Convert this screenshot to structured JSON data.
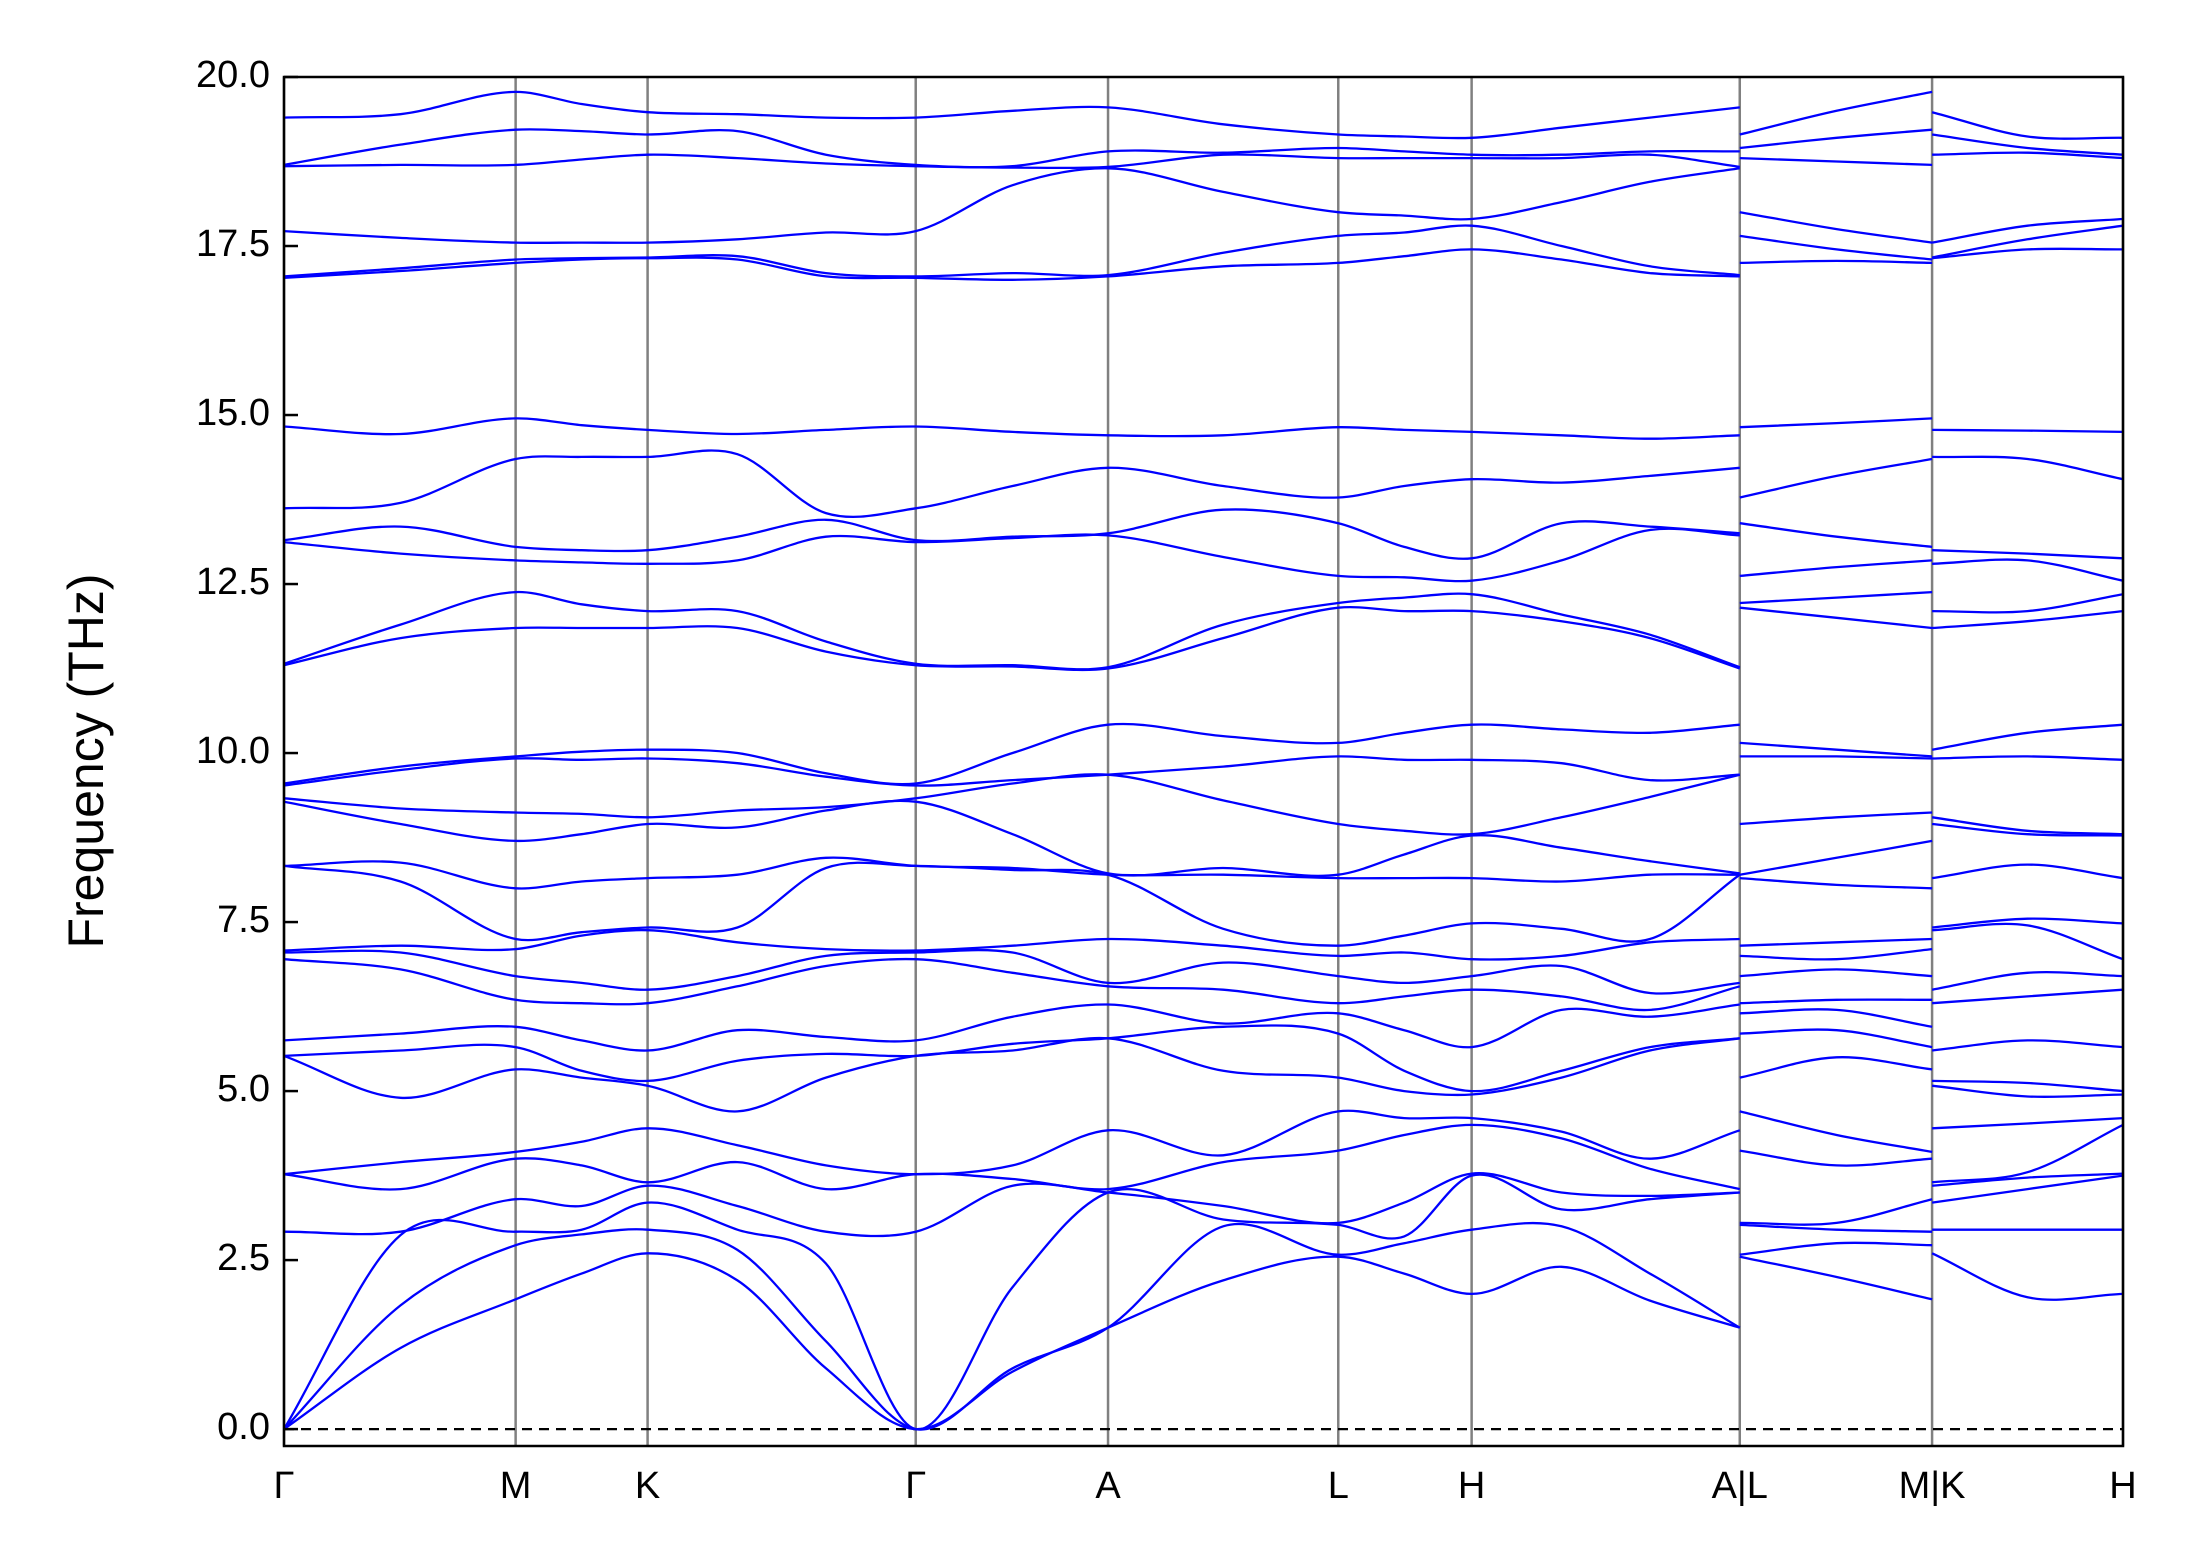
{
  "chart_data": {
    "type": "line",
    "y_label": "Frequency (THz)",
    "color": "#0000ff",
    "grid_color": "#808080",
    "xgrid": true,
    "hline": 0,
    "xlim": [
      0,
      1.31
    ],
    "ylim": [
      -0.25,
      20
    ],
    "xticks": [
      {
        "value": 0,
        "label": "Γ"
      },
      {
        "value": 0.165,
        "label": "M"
      },
      {
        "value": 0.259,
        "label": "K"
      },
      {
        "value": 0.45,
        "label": "Γ"
      },
      {
        "value": 0.587,
        "label": "A"
      },
      {
        "value": 0.751,
        "label": "L"
      },
      {
        "value": 0.846,
        "label": "H"
      },
      {
        "value": 1.037,
        "label": "A|L"
      },
      {
        "value": 1.174,
        "label": "M|K"
      },
      {
        "value": 1.31,
        "label": "H"
      }
    ],
    "yticks": [
      {
        "value": 0,
        "label": "0.0"
      },
      2.5,
      {
        "value": 5,
        "label": "5.0"
      },
      7.5,
      {
        "value": 10,
        "label": "10.0"
      },
      12.5,
      {
        "value": 15,
        "label": "15.0"
      },
      17.5,
      {
        "value": 20,
        "label": "20.0"
      }
    ],
    "x": [
      0,
      0.083,
      0.165,
      0.212,
      0.259,
      0.323,
      0.386,
      0.45,
      0.519,
      0.587,
      0.669,
      0.751,
      0.798,
      0.846,
      0.91,
      0.973,
      1.037,
      1.037,
      1.037,
      1.106,
      1.174,
      1.174,
      1.174,
      1.242,
      1.31
    ],
    "series": [
      {
        "values": [
          0,
          1.2,
          1.92,
          2.3,
          2.6,
          2.2,
          0.9,
          0,
          0.85,
          1.5,
          2.2,
          2.55,
          2.3,
          2.0,
          2.4,
          1.9,
          1.5,
          null,
          2.55,
          2.25,
          1.92,
          null,
          2.6,
          1.95,
          2.0
        ]
      },
      {
        "values": [
          0,
          1.83,
          2.72,
          2.88,
          2.95,
          2.65,
          1.3,
          0,
          0.9,
          1.5,
          3.0,
          2.58,
          2.75,
          2.95,
          3.0,
          2.3,
          1.5,
          null,
          2.58,
          2.75,
          2.72,
          null,
          2.95,
          2.95,
          2.95
        ]
      },
      {
        "values": [
          0,
          2.87,
          2.92,
          2.95,
          3.35,
          2.95,
          2.45,
          0,
          2.1,
          3.5,
          3.1,
          3.02,
          2.85,
          3.75,
          3.25,
          3.4,
          3.5,
          null,
          3.02,
          2.95,
          2.92,
          null,
          3.35,
          3.55,
          3.75
        ]
      },
      {
        "values": [
          2.92,
          2.92,
          3.4,
          3.3,
          3.6,
          3.3,
          2.92,
          2.92,
          3.6,
          3.5,
          3.3,
          3.05,
          3.35,
          3.78,
          3.5,
          3.45,
          3.5,
          null,
          3.05,
          3.05,
          3.4,
          null,
          3.6,
          3.72,
          3.78
        ]
      },
      {
        "values": [
          3.77,
          3.55,
          4.0,
          3.9,
          3.65,
          3.95,
          3.55,
          3.77,
          3.7,
          3.55,
          3.95,
          4.12,
          4.35,
          4.5,
          4.3,
          3.85,
          3.55,
          null,
          4.12,
          3.9,
          4.0,
          null,
          3.65,
          3.8,
          4.5
        ]
      },
      {
        "values": [
          3.77,
          3.95,
          4.1,
          4.25,
          4.45,
          4.2,
          3.9,
          3.77,
          3.9,
          4.42,
          4.05,
          4.7,
          4.6,
          4.6,
          4.4,
          4.0,
          4.42,
          null,
          4.7,
          4.35,
          4.1,
          null,
          4.45,
          4.52,
          4.6
        ]
      },
      {
        "values": [
          5.52,
          4.9,
          5.32,
          5.2,
          5.08,
          4.7,
          5.2,
          5.52,
          5.6,
          5.78,
          5.3,
          5.2,
          5.0,
          4.95,
          5.2,
          5.6,
          5.78,
          null,
          5.2,
          5.5,
          5.32,
          null,
          5.08,
          4.92,
          4.95
        ]
      },
      {
        "values": [
          5.52,
          5.6,
          5.65,
          5.3,
          5.15,
          5.45,
          5.55,
          5.52,
          5.7,
          5.78,
          5.95,
          5.85,
          5.3,
          5.0,
          5.3,
          5.65,
          5.78,
          null,
          5.85,
          5.9,
          5.65,
          null,
          5.15,
          5.12,
          5.0
        ]
      },
      {
        "values": [
          5.75,
          5.85,
          5.95,
          5.75,
          5.6,
          5.9,
          5.8,
          5.75,
          6.1,
          6.28,
          6.0,
          6.15,
          5.9,
          5.65,
          6.2,
          6.1,
          6.28,
          null,
          6.15,
          6.2,
          5.95,
          null,
          5.6,
          5.75,
          5.65
        ]
      },
      {
        "values": [
          6.95,
          6.8,
          6.35,
          6.3,
          6.3,
          6.55,
          6.85,
          6.95,
          6.75,
          6.55,
          6.5,
          6.3,
          6.4,
          6.5,
          6.4,
          6.2,
          6.55,
          null,
          6.3,
          6.35,
          6.35,
          null,
          6.3,
          6.4,
          6.5
        ]
      },
      {
        "values": [
          7.05,
          7.05,
          6.7,
          6.6,
          6.5,
          6.7,
          7.0,
          7.05,
          7.05,
          6.6,
          6.9,
          6.7,
          6.6,
          6.7,
          6.85,
          6.45,
          6.6,
          null,
          6.7,
          6.8,
          6.7,
          null,
          6.5,
          6.75,
          6.7
        ]
      },
      {
        "values": [
          7.08,
          7.15,
          7.1,
          7.3,
          7.38,
          7.2,
          7.1,
          7.08,
          7.15,
          7.25,
          7.15,
          7.0,
          7.05,
          6.95,
          7.0,
          7.2,
          7.25,
          null,
          7.0,
          6.95,
          7.1,
          null,
          7.38,
          7.45,
          6.95
        ]
      },
      {
        "values": [
          8.33,
          8.1,
          7.25,
          7.35,
          7.42,
          7.42,
          8.3,
          8.33,
          8.27,
          8.2,
          7.4,
          7.15,
          7.3,
          7.48,
          7.4,
          7.25,
          8.2,
          null,
          7.15,
          7.2,
          7.25,
          null,
          7.42,
          7.55,
          7.48
        ]
      },
      {
        "values": [
          8.33,
          8.38,
          8.0,
          8.1,
          8.15,
          8.2,
          8.45,
          8.33,
          8.3,
          8.2,
          8.2,
          8.15,
          8.15,
          8.15,
          8.1,
          8.2,
          8.2,
          null,
          8.15,
          8.05,
          8.0,
          null,
          8.15,
          8.35,
          8.15
        ]
      },
      {
        "values": [
          9.28,
          8.95,
          8.7,
          8.8,
          8.95,
          8.9,
          9.15,
          9.28,
          8.8,
          8.22,
          8.3,
          8.2,
          8.5,
          8.78,
          8.6,
          8.4,
          8.22,
          null,
          8.2,
          8.45,
          8.7,
          null,
          8.95,
          8.8,
          8.78
        ]
      },
      {
        "values": [
          9.33,
          9.18,
          9.12,
          9.1,
          9.05,
          9.15,
          9.2,
          9.33,
          9.55,
          9.68,
          9.3,
          8.95,
          8.85,
          8.8,
          9.05,
          9.35,
          9.68,
          null,
          8.95,
          9.05,
          9.12,
          null,
          9.05,
          8.85,
          8.8
        ]
      },
      {
        "values": [
          9.52,
          9.75,
          9.92,
          9.9,
          9.92,
          9.85,
          9.65,
          9.52,
          9.6,
          9.68,
          9.8,
          9.95,
          9.9,
          9.9,
          9.85,
          9.6,
          9.68,
          null,
          9.95,
          9.95,
          9.92,
          null,
          9.92,
          9.95,
          9.9
        ]
      },
      {
        "values": [
          9.55,
          9.8,
          9.95,
          10.02,
          10.05,
          10.0,
          9.7,
          9.55,
          10.0,
          10.42,
          10.25,
          10.15,
          10.3,
          10.42,
          10.35,
          10.3,
          10.42,
          null,
          10.15,
          10.05,
          9.95,
          null,
          10.05,
          10.3,
          10.42
        ]
      },
      {
        "values": [
          11.3,
          11.7,
          11.85,
          11.85,
          11.85,
          11.85,
          11.5,
          11.3,
          11.28,
          11.25,
          11.7,
          12.15,
          12.1,
          12.1,
          11.95,
          11.7,
          11.25,
          null,
          12.15,
          12.0,
          11.85,
          null,
          11.85,
          11.95,
          12.1
        ]
      },
      {
        "values": [
          11.32,
          11.9,
          12.38,
          12.2,
          12.1,
          12.1,
          11.65,
          11.32,
          11.3,
          11.27,
          11.9,
          12.22,
          12.3,
          12.35,
          12.05,
          11.75,
          11.27,
          null,
          12.22,
          12.3,
          12.38,
          null,
          12.1,
          12.1,
          12.35
        ]
      },
      {
        "values": [
          13.12,
          12.95,
          12.85,
          12.82,
          12.8,
          12.85,
          13.2,
          13.12,
          13.18,
          13.22,
          12.9,
          12.62,
          12.6,
          12.55,
          12.85,
          13.3,
          13.22,
          null,
          12.62,
          12.75,
          12.85,
          null,
          12.8,
          12.85,
          12.55
        ]
      },
      {
        "values": [
          13.15,
          13.35,
          13.05,
          13.0,
          13.0,
          13.2,
          13.45,
          13.15,
          13.2,
          13.25,
          13.6,
          13.4,
          13.05,
          12.88,
          13.4,
          13.35,
          13.25,
          null,
          13.4,
          13.2,
          13.05,
          null,
          13.0,
          12.95,
          12.88
        ]
      },
      {
        "values": [
          13.62,
          13.7,
          14.35,
          14.38,
          14.38,
          14.42,
          13.55,
          13.62,
          13.95,
          14.22,
          13.95,
          13.78,
          13.95,
          14.05,
          14.0,
          14.1,
          14.22,
          null,
          13.78,
          14.1,
          14.35,
          null,
          14.38,
          14.35,
          14.05
        ]
      },
      {
        "values": [
          14.83,
          14.72,
          14.95,
          14.85,
          14.78,
          14.72,
          14.78,
          14.83,
          14.75,
          14.7,
          14.7,
          14.82,
          14.78,
          14.75,
          14.7,
          14.65,
          14.7,
          null,
          14.82,
          14.88,
          14.95,
          null,
          14.78,
          14.77,
          14.75
        ]
      },
      {
        "values": [
          17.03,
          17.13,
          17.25,
          17.3,
          17.32,
          17.3,
          17.05,
          17.03,
          17.0,
          17.05,
          17.2,
          17.25,
          17.35,
          17.45,
          17.3,
          17.1,
          17.05,
          null,
          17.25,
          17.28,
          17.25,
          null,
          17.32,
          17.45,
          17.45
        ]
      },
      {
        "values": [
          17.05,
          17.17,
          17.3,
          17.32,
          17.33,
          17.35,
          17.1,
          17.05,
          17.1,
          17.07,
          17.4,
          17.65,
          17.7,
          17.8,
          17.5,
          17.2,
          17.07,
          null,
          17.65,
          17.45,
          17.3,
          null,
          17.33,
          17.6,
          17.8
        ]
      },
      {
        "values": [
          17.72,
          17.62,
          17.55,
          17.55,
          17.55,
          17.6,
          17.7,
          17.72,
          18.4,
          18.65,
          18.3,
          18.0,
          17.95,
          17.9,
          18.15,
          18.45,
          18.65,
          null,
          18.0,
          17.75,
          17.55,
          null,
          17.55,
          17.8,
          17.9
        ]
      },
      {
        "values": [
          18.68,
          18.7,
          18.7,
          18.78,
          18.85,
          18.8,
          18.72,
          18.68,
          18.66,
          18.67,
          18.85,
          18.8,
          18.8,
          18.8,
          18.8,
          18.85,
          18.67,
          null,
          18.8,
          18.75,
          18.7,
          null,
          18.85,
          18.88,
          18.8
        ]
      },
      {
        "values": [
          18.7,
          19.0,
          19.22,
          19.2,
          19.15,
          19.2,
          18.85,
          18.7,
          18.68,
          18.9,
          18.88,
          18.95,
          18.9,
          18.85,
          18.85,
          18.9,
          18.9,
          null,
          18.95,
          19.1,
          19.22,
          null,
          19.15,
          18.95,
          18.85
        ]
      },
      {
        "values": [
          19.4,
          19.45,
          19.78,
          19.6,
          19.48,
          19.45,
          19.4,
          19.4,
          19.5,
          19.55,
          19.3,
          19.15,
          19.12,
          19.1,
          19.25,
          19.4,
          19.55,
          null,
          19.15,
          19.5,
          19.78,
          null,
          19.48,
          19.12,
          19.1
        ]
      }
    ]
  }
}
